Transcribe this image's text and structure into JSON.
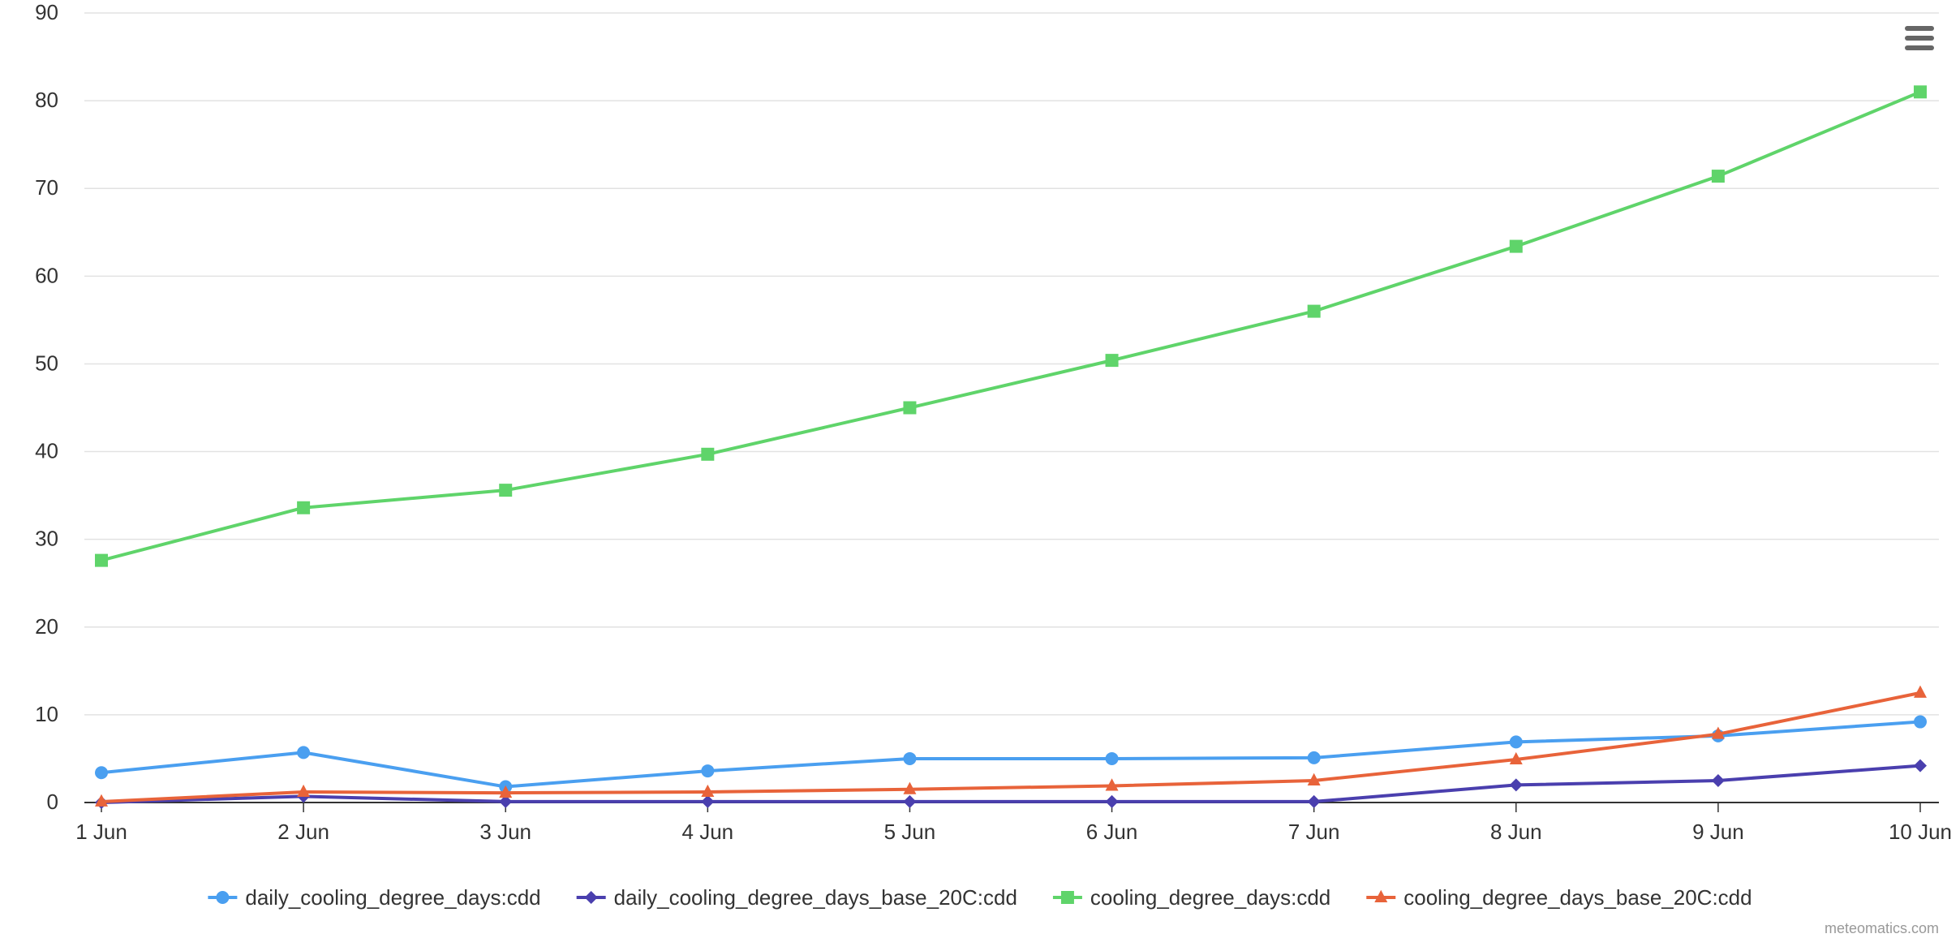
{
  "chart_data": {
    "type": "line",
    "categories": [
      "1 Jun",
      "2 Jun",
      "3 Jun",
      "4 Jun",
      "5 Jun",
      "6 Jun",
      "7 Jun",
      "8 Jun",
      "9 Jun",
      "10 Jun"
    ],
    "ylim": [
      0,
      90
    ],
    "y_ticks": [
      0,
      10,
      20,
      30,
      40,
      50,
      60,
      70,
      80,
      90
    ],
    "grid": true,
    "legend_position": "bottom-center",
    "series": [
      {
        "name": "daily_cooling_degree_days:cdd",
        "color": "#4a9ff0",
        "marker": "circle",
        "values": [
          3.4,
          5.7,
          1.8,
          3.6,
          5.0,
          5.0,
          5.1,
          6.9,
          7.6,
          9.2
        ]
      },
      {
        "name": "daily_cooling_degree_days_base_20C:cdd",
        "color": "#4a3fae",
        "marker": "diamond",
        "values": [
          0.0,
          0.7,
          0.1,
          0.1,
          0.1,
          0.1,
          0.1,
          2.0,
          2.5,
          4.2
        ]
      },
      {
        "name": "cooling_degree_days:cdd",
        "color": "#5fd46a",
        "marker": "square",
        "values": [
          27.6,
          33.6,
          35.6,
          39.7,
          45.0,
          50.4,
          56.0,
          63.4,
          71.4,
          81.0
        ]
      },
      {
        "name": "cooling_degree_days_base_20C:cdd",
        "color": "#e8633a",
        "marker": "triangle",
        "values": [
          0.1,
          1.2,
          1.1,
          1.2,
          1.5,
          1.9,
          2.5,
          4.9,
          7.8,
          12.5
        ]
      }
    ]
  },
  "credits": "meteomatics.com",
  "menu_icon": "hamburger-menu-icon"
}
